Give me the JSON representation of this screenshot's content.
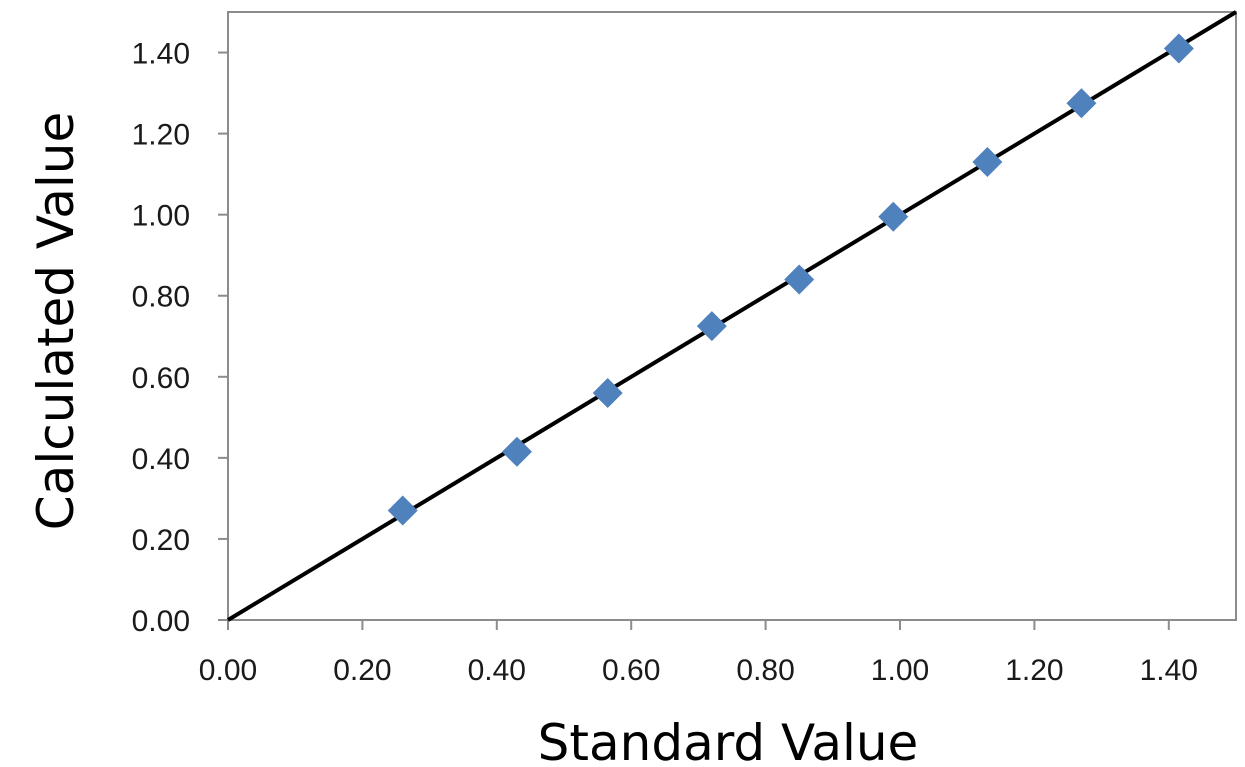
{
  "chart_data": {
    "type": "scatter",
    "xlabel": "Standard Value",
    "ylabel": "Calculated Value",
    "xlim": [
      0,
      1.5
    ],
    "ylim": [
      0,
      1.5
    ],
    "x_ticks": [
      "0.00",
      "0.20",
      "0.40",
      "0.60",
      "0.80",
      "1.00",
      "1.20",
      "1.40"
    ],
    "y_ticks": [
      "0.00",
      "0.20",
      "0.40",
      "0.60",
      "0.80",
      "1.00",
      "1.20",
      "1.40"
    ],
    "grid": false,
    "legend": "none",
    "series": [
      {
        "marker": "diamond",
        "color": "#4F81BD",
        "points": [
          {
            "x": 0.26,
            "y": 0.27
          },
          {
            "x": 0.43,
            "y": 0.415
          },
          {
            "x": 0.565,
            "y": 0.56
          },
          {
            "x": 0.72,
            "y": 0.725
          },
          {
            "x": 0.85,
            "y": 0.84
          },
          {
            "x": 0.99,
            "y": 0.995
          },
          {
            "x": 1.13,
            "y": 1.13
          },
          {
            "x": 1.27,
            "y": 1.275
          },
          {
            "x": 1.415,
            "y": 1.41
          }
        ]
      }
    ],
    "reference_line": {
      "color": "#000000",
      "from": [
        0,
        0
      ],
      "to": [
        1.5,
        1.5
      ]
    }
  }
}
